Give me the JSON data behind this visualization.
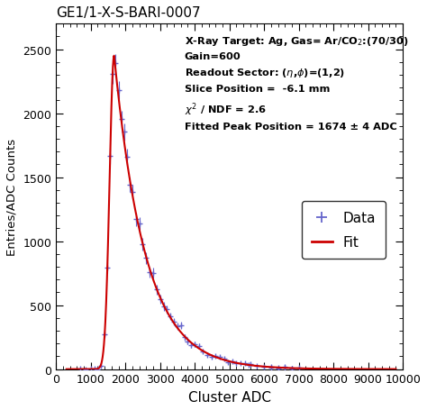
{
  "title": "GE1/1-X-S-BARI-0007",
  "xlabel": "Cluster ADC",
  "ylabel": "Entries/ADC Counts",
  "xlim": [
    0,
    10000
  ],
  "ylim": [
    0,
    2700
  ],
  "xticks": [
    0,
    1000,
    2000,
    3000,
    4000,
    5000,
    6000,
    7000,
    8000,
    9000,
    10000
  ],
  "yticks": [
    0,
    500,
    1000,
    1500,
    2000,
    2500
  ],
  "annotation_lines": [
    "X-Ray Target: Ag, Gas= Ar/CO$_2$:(70/30)",
    "Gain=600",
    "Readout Sector: ($\\eta$,$\\phi$)=(1,2)",
    "Slice Position =  -6.1 mm",
    "$\\chi^2$ / NDF = 2.6",
    "Fitted Peak Position = 1674 ± 4 ADC"
  ],
  "peak_adc": 1674,
  "peak_height": 2450,
  "fit_color": "#cc0000",
  "data_color": "#6666cc",
  "background_color": "#ffffff",
  "figsize": [
    4.74,
    4.56
  ],
  "dpi": 100
}
